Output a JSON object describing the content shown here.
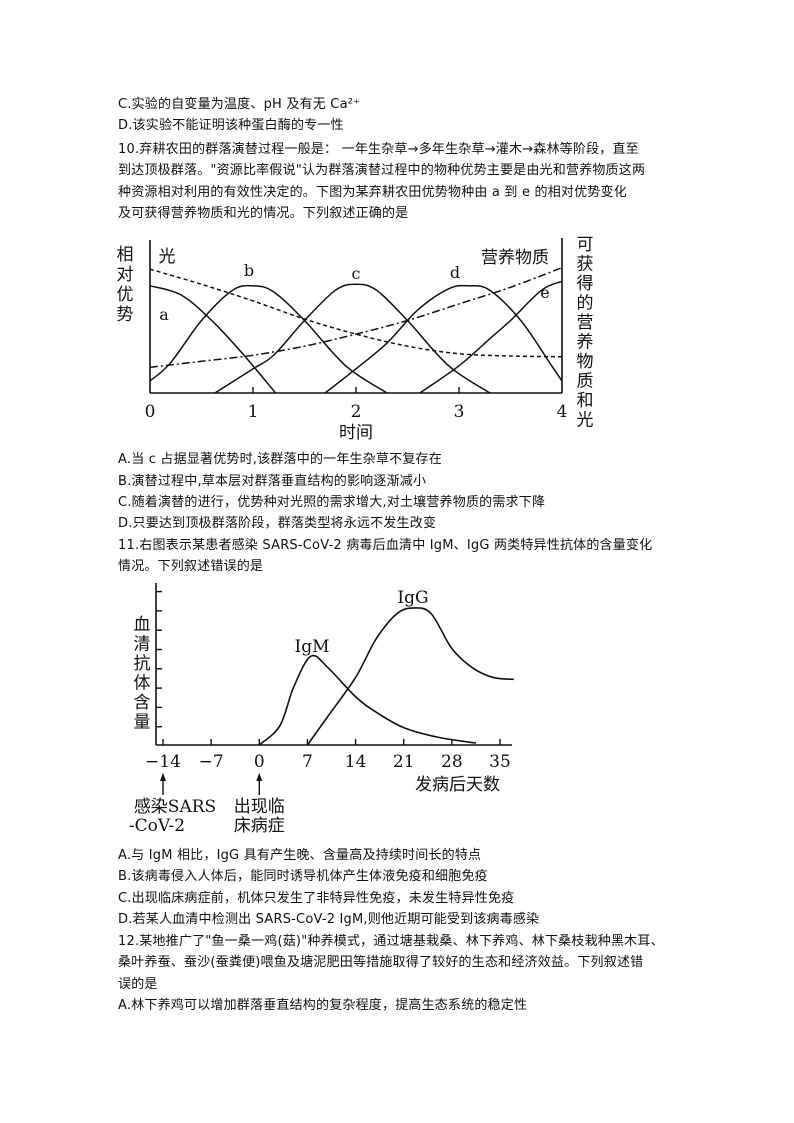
{
  "lines_top": [
    "C.实验的自变量为温度、pH 及有无 Ca²⁺",
    "D.该实验不能证明该种蛋白酶的专一性",
    "10.弃耕农田的群落演替过程一般是： 一年生杂草→多年生杂草→灌木→森林等阶段，直至",
    "到达顶极群落。\"资源比率假说\"认为群落演替过程中的物种优势主要是由光和营养物质这两",
    "种资源相对利用的有效性决定的。下图为某弃耕农田优势物种由 a 到  e 的相对优势变化",
    "及可获得营养物质和光的情况。下列叙述正确的是"
  ],
  "lines_mid": [
    "A.当 c 占据显著优势时,该群落中的一年生杂草不复存在",
    "B.演替过程中,草本层对群落垂直结构的影响逐渐减小",
    "C.随着演替的进行，优势种对光照的需求增大,对土壤营养物质的需求下降",
    "D.只要达到顶极群落阶段，群落类型将永远不发生改变",
    "11.右图表示某患者感染 SARS-CoV-2  病毒后血清中 IgM、IgG 两类特异性抗体的含量变化",
    "情况。下列叙述错误的是"
  ],
  "lines_bottom": [
    "A.与 IgM 相比，IgG 具有产生晚、含量高及持续时间长的特点",
    "B.该病毒侵入人体后，能同时诱导机体产生体液免疫和细胞免疫",
    "C.出现临床病症前，机体只发生了非特异性免疫，未发生特异性免疫",
    "D.若某人血清中检测出 SARS-CoV-2 IgM,则他近期可能受到该病毒感染",
    "12.某地推广了\"鱼一桑一鸡(菇)\"种养模式，通过塘基栽桑、林下养鸡、林下桑枝栽种黑木耳、",
    "桑叶养蚕、蚕沙(蚕粪便)喂鱼及塘泥肥田等措施取得了较好的生态和经济效益。下列叙述错",
    "误的是",
    "A.林下养鸡可以增加群落垂直结构的复杂程度，提高生态系统的稳定性"
  ],
  "chart_data": [
    {
      "type": "line",
      "xlabel": "时间",
      "ylabel_left": "相对优势",
      "ylabel_right": "可获得的营养物质和光",
      "xticks": [
        "0",
        "1",
        "2",
        "3",
        "4"
      ],
      "xlim": [
        0,
        4
      ],
      "ylim": [
        0,
        10
      ],
      "grid": false,
      "series": [
        {
          "name": "a",
          "style": "solid",
          "points": [
            [
              0,
              7.1
            ],
            [
              0.3,
              6.5
            ],
            [
              0.6,
              4.8
            ],
            [
              0.9,
              2.6
            ],
            [
              1.22,
              0
            ]
          ]
        },
        {
          "name": "b",
          "style": "solid",
          "points": [
            [
              0,
              0.8
            ],
            [
              0.2,
              2
            ],
            [
              0.5,
              4.8
            ],
            [
              0.8,
              6.8
            ],
            [
              1,
              7.1
            ],
            [
              1.2,
              6.7
            ],
            [
              1.5,
              4.8
            ],
            [
              1.9,
              1.8
            ],
            [
              2.3,
              0
            ]
          ]
        },
        {
          "name": "c",
          "style": "solid",
          "points": [
            [
              0.63,
              0
            ],
            [
              1,
              1.6
            ],
            [
              1.2,
              2.5
            ],
            [
              1.5,
              4.8
            ],
            [
              1.8,
              6.8
            ],
            [
              2,
              7.2
            ],
            [
              2.2,
              6.8
            ],
            [
              2.5,
              4.8
            ],
            [
              2.9,
              1.8
            ],
            [
              3.3,
              0
            ]
          ]
        },
        {
          "name": "d",
          "style": "solid",
          "points": [
            [
              1.7,
              0
            ],
            [
              2,
              1.6
            ],
            [
              2.3,
              3.3
            ],
            [
              2.6,
              5.5
            ],
            [
              2.9,
              6.9
            ],
            [
              3.1,
              7.1
            ],
            [
              3.3,
              6.8
            ],
            [
              3.6,
              4.8
            ],
            [
              3.9,
              1.8
            ],
            [
              4,
              0.8
            ]
          ]
        },
        {
          "name": "e",
          "style": "solid",
          "points": [
            [
              2.62,
              0
            ],
            [
              3,
              1.8
            ],
            [
              3.3,
              3.6
            ],
            [
              3.5,
              4.8
            ],
            [
              3.8,
              6.8
            ],
            [
              4,
              7.4
            ]
          ]
        },
        {
          "name": "光",
          "style": "dashed",
          "points": [
            [
              0,
              8.2
            ],
            [
              0.5,
              7.2
            ],
            [
              1,
              6.1
            ],
            [
              1.5,
              4.9
            ],
            [
              2,
              3.9
            ],
            [
              2.5,
              3.1
            ],
            [
              3,
              2.6
            ],
            [
              3.5,
              2.45
            ],
            [
              4,
              2.4
            ]
          ]
        },
        {
          "name": "营养物质",
          "style": "dashdot",
          "points": [
            [
              0,
              1.7
            ],
            [
              0.5,
              2.1
            ],
            [
              1,
              2.5
            ],
            [
              1.5,
              3.1
            ],
            [
              2,
              3.9
            ],
            [
              2.5,
              4.8
            ],
            [
              3,
              5.9
            ],
            [
              3.5,
              7
            ],
            [
              4,
              8.3
            ]
          ]
        }
      ]
    },
    {
      "type": "line",
      "xlabel": "发病后天数",
      "ylabel": "血清抗体含量",
      "xticks": [
        "-14",
        "-7",
        "0",
        "7",
        "14",
        "21",
        "28",
        "35"
      ],
      "xlim": [
        -14,
        37
      ],
      "ylim": [
        0,
        8.5
      ],
      "grid": false,
      "annotations": [
        {
          "x": -14,
          "text": "感染SARS\n-CoV-2"
        },
        {
          "x": 0,
          "text": "出现临\n床病症"
        }
      ],
      "series": [
        {
          "name": "IgM",
          "points": [
            [
              0,
              0
            ],
            [
              3,
              1
            ],
            [
              5,
              3
            ],
            [
              7.5,
              4.6
            ],
            [
              10,
              4
            ],
            [
              14,
              2.5
            ],
            [
              17,
              1.7
            ],
            [
              21,
              0.9
            ],
            [
              26,
              0.4
            ],
            [
              31.5,
              0.1
            ]
          ]
        },
        {
          "name": "IgG",
          "points": [
            [
              7,
              0
            ],
            [
              10,
              1.5
            ],
            [
              14,
              3.5
            ],
            [
              17,
              5.5
            ],
            [
              20,
              6.8
            ],
            [
              22.5,
              7.1
            ],
            [
              25,
              6.8
            ],
            [
              28,
              5
            ],
            [
              31,
              4
            ],
            [
              34,
              3.5
            ],
            [
              37,
              3.4
            ]
          ]
        }
      ]
    }
  ]
}
